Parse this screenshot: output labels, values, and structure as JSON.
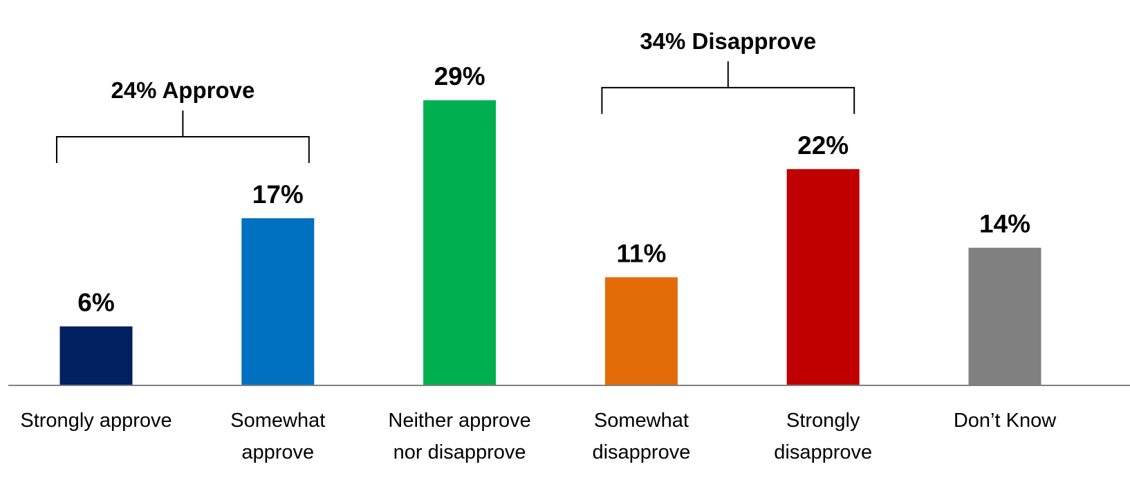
{
  "chart_data": {
    "type": "bar",
    "categories": [
      [
        "Strongly approve"
      ],
      [
        "Somewhat",
        "approve"
      ],
      [
        "Neither approve",
        "nor disapprove"
      ],
      [
        "Somewhat",
        "disapprove"
      ],
      [
        "Strongly",
        "disapprove"
      ],
      [
        "Don’t Know"
      ]
    ],
    "values": [
      6,
      17,
      29,
      11,
      22,
      14
    ],
    "value_labels": [
      "6%",
      "17%",
      "29%",
      "11%",
      "22%",
      "14%"
    ],
    "colors": [
      "#002060",
      "#0070C0",
      "#00B050",
      "#E36C09",
      "#C00000",
      "#808080"
    ],
    "ylim": [
      0,
      34
    ],
    "grid": false,
    "legend": "none",
    "groups": [
      {
        "label": "24% Approve",
        "from": 0,
        "to": 1
      },
      {
        "label": "34% Disapprove",
        "from": 3,
        "to": 4
      }
    ]
  }
}
